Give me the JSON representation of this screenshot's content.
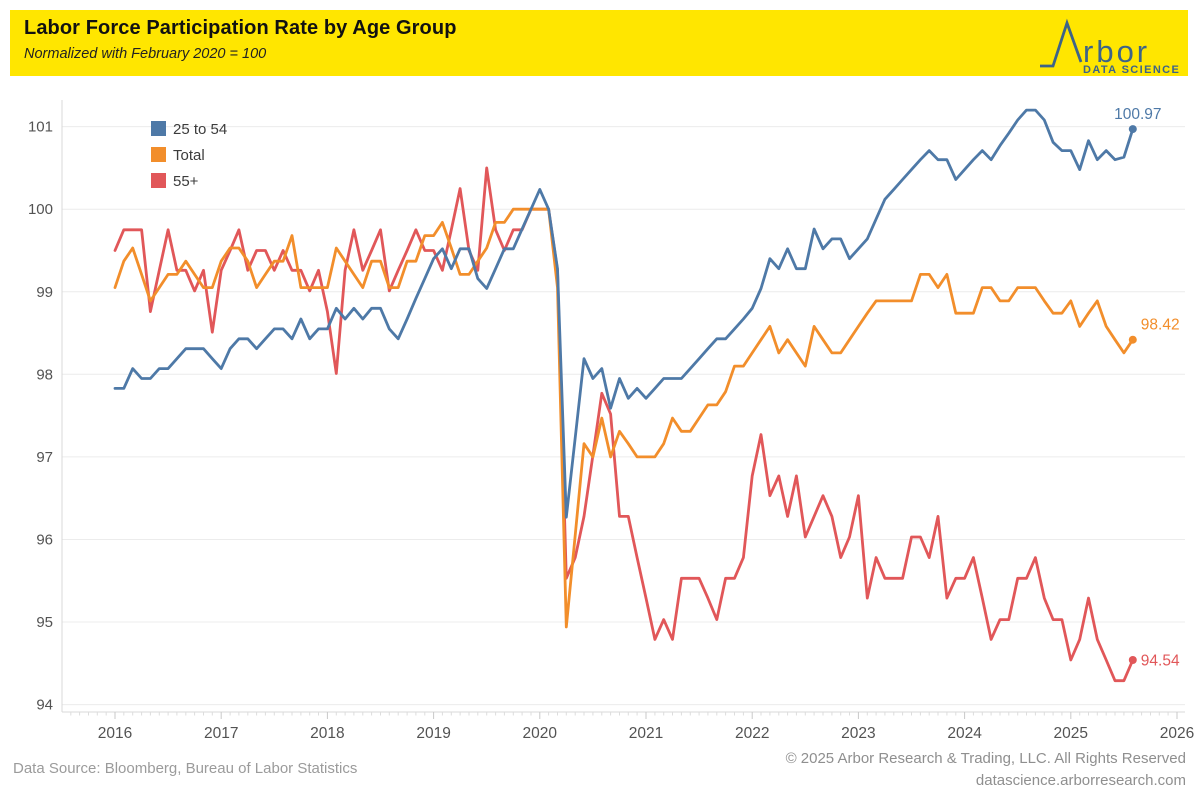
{
  "header": {
    "title": "Labor Force Participation Rate by Age Group",
    "subtitle": "Normalized with February 2020 = 100",
    "logo": {
      "brand": "rbor",
      "tagline": "DATA SCIENCE",
      "color": "#3d6488"
    }
  },
  "footer": {
    "source": "Data Source: Bloomberg, Bureau of Labor Statistics",
    "copyright": "© 2025 Arbor Research & Trading, LLC. All Rights Reserved",
    "website": "datascience.arborresearch.com"
  },
  "colors": {
    "banner_yellow": "#FFE600",
    "gridline": "#ececec",
    "axis_line": "#d8d8d8",
    "tick_minor": "#dddddd",
    "tick_major": "#c9c9c9",
    "tick_label": "#535353",
    "legend_text": "#3c3c3c"
  },
  "chart_data": {
    "type": "line",
    "title": "Labor Force Participation Rate by Age Group",
    "subtitle": "Normalized with February 2020 = 100",
    "x_start": {
      "year": 2016,
      "month": 1
    },
    "x_end": {
      "year": 2025,
      "month": 8
    },
    "x_tick_years": [
      2016,
      2017,
      2018,
      2019,
      2020,
      2021,
      2022,
      2023,
      2024,
      2025,
      2026
    ],
    "y_ticks": [
      94,
      95,
      96,
      97,
      98,
      99,
      100,
      101
    ],
    "ylim": [
      93.8,
      101.35
    ],
    "grid": true,
    "legend_position": "top-left",
    "series": [
      {
        "name": "25 to 54",
        "color": "#4e79a7",
        "end_label": "100.97",
        "values": [
          97.83,
          97.83,
          98.07,
          97.95,
          97.95,
          98.07,
          98.07,
          98.19,
          98.31,
          98.31,
          98.31,
          98.19,
          98.07,
          98.31,
          98.43,
          98.43,
          98.31,
          98.43,
          98.55,
          98.55,
          98.43,
          98.67,
          98.43,
          98.55,
          98.55,
          98.8,
          98.67,
          98.8,
          98.67,
          98.8,
          98.8,
          98.55,
          98.43,
          98.67,
          98.92,
          99.16,
          99.4,
          99.52,
          99.28,
          99.52,
          99.52,
          99.16,
          99.04,
          99.28,
          99.52,
          99.52,
          99.76,
          100.0,
          100.24,
          100.0,
          99.28,
          96.27,
          97.23,
          98.19,
          97.95,
          98.07,
          97.59,
          97.95,
          97.71,
          97.83,
          97.71,
          97.83,
          97.95,
          97.95,
          97.95,
          98.07,
          98.19,
          98.31,
          98.43,
          98.43,
          98.55,
          98.67,
          98.8,
          99.04,
          99.4,
          99.28,
          99.52,
          99.28,
          99.28,
          99.76,
          99.52,
          99.64,
          99.64,
          99.4,
          99.52,
          99.64,
          99.88,
          100.12,
          100.24,
          100.36,
          100.48,
          100.6,
          100.71,
          100.6,
          100.6,
          100.36,
          100.48,
          100.6,
          100.71,
          100.6,
          100.77,
          100.92,
          101.08,
          101.2,
          101.2,
          101.08,
          100.81,
          100.71,
          100.71,
          100.48,
          100.83,
          100.6,
          100.71,
          100.6,
          100.63,
          100.97
        ]
      },
      {
        "name": "Total",
        "color": "#f28e2b",
        "end_label": "98.42",
        "values": [
          99.05,
          99.37,
          99.53,
          99.21,
          98.89,
          99.05,
          99.21,
          99.21,
          99.37,
          99.21,
          99.05,
          99.05,
          99.37,
          99.53,
          99.53,
          99.37,
          99.05,
          99.21,
          99.37,
          99.37,
          99.68,
          99.05,
          99.05,
          99.05,
          99.05,
          99.53,
          99.37,
          99.21,
          99.05,
          99.37,
          99.37,
          99.05,
          99.05,
          99.37,
          99.37,
          99.68,
          99.68,
          99.84,
          99.53,
          99.21,
          99.21,
          99.37,
          99.53,
          99.84,
          99.84,
          100.0,
          100.0,
          100.0,
          100.0,
          100.0,
          99.05,
          94.94,
          96.05,
          97.16,
          97.0,
          97.47,
          97.0,
          97.31,
          97.16,
          97.0,
          97.0,
          97.0,
          97.16,
          97.47,
          97.31,
          97.31,
          97.47,
          97.63,
          97.63,
          97.79,
          98.1,
          98.1,
          98.26,
          98.42,
          98.58,
          98.26,
          98.42,
          98.26,
          98.1,
          98.58,
          98.42,
          98.26,
          98.26,
          98.42,
          98.58,
          98.74,
          98.89,
          98.89,
          98.89,
          98.89,
          98.89,
          99.21,
          99.21,
          99.05,
          99.21,
          98.74,
          98.74,
          98.74,
          99.05,
          99.05,
          98.89,
          98.89,
          99.05,
          99.05,
          99.05,
          98.89,
          98.74,
          98.74,
          98.89,
          98.58,
          98.74,
          98.89,
          98.58,
          98.42,
          98.26,
          98.42
        ]
      },
      {
        "name": "55+",
        "color": "#e15759",
        "end_label": "94.54",
        "values": [
          99.5,
          99.75,
          99.75,
          99.75,
          98.76,
          99.26,
          99.75,
          99.26,
          99.26,
          99.01,
          99.26,
          98.51,
          99.26,
          99.5,
          99.75,
          99.26,
          99.5,
          99.5,
          99.26,
          99.5,
          99.26,
          99.26,
          99.01,
          99.26,
          98.76,
          98.01,
          99.26,
          99.75,
          99.26,
          99.5,
          99.75,
          99.01,
          99.26,
          99.5,
          99.75,
          99.5,
          99.5,
          99.26,
          99.75,
          100.25,
          99.5,
          99.26,
          100.5,
          99.75,
          99.5,
          99.75,
          99.75,
          100.0,
          100.0,
          100.0,
          99.26,
          95.53,
          95.78,
          96.28,
          97.02,
          97.77,
          97.52,
          96.28,
          96.28,
          95.78,
          95.29,
          94.79,
          95.03,
          94.79,
          95.53,
          95.53,
          95.53,
          95.29,
          95.03,
          95.53,
          95.53,
          95.78,
          96.77,
          97.27,
          96.53,
          96.77,
          96.28,
          96.77,
          96.03,
          96.28,
          96.53,
          96.28,
          95.78,
          96.03,
          96.53,
          95.29,
          95.78,
          95.53,
          95.53,
          95.53,
          96.03,
          96.03,
          95.78,
          96.28,
          95.29,
          95.53,
          95.53,
          95.78,
          95.29,
          94.79,
          95.03,
          95.03,
          95.53,
          95.53,
          95.78,
          95.29,
          95.03,
          95.03,
          94.54,
          94.79,
          95.29,
          94.79,
          94.54,
          94.29,
          94.29,
          94.54
        ]
      }
    ]
  }
}
